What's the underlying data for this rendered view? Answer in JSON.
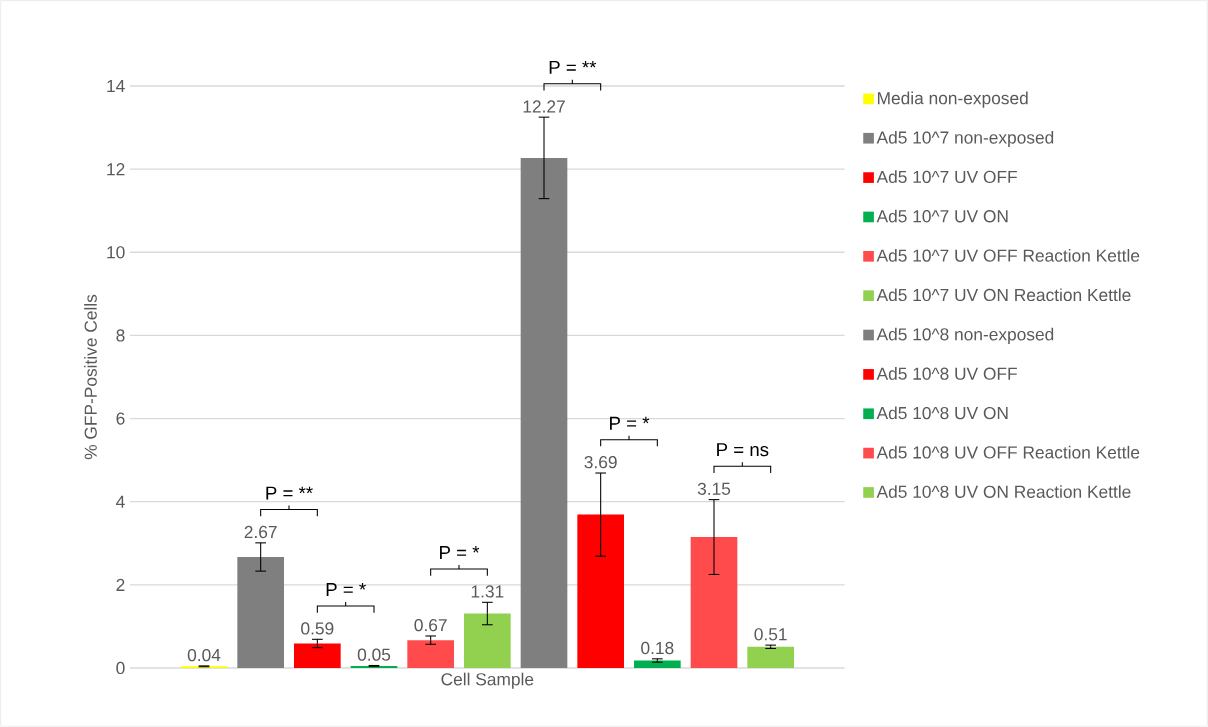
{
  "chart_data": {
    "type": "bar",
    "ylabel": "% GFP-Positive Cells",
    "categories": [
      "Cell Sample"
    ],
    "series": [
      {
        "name": "Media non-exposed",
        "color": "#ffff00",
        "values": [
          0.04
        ],
        "errors": [
          0.01
        ]
      },
      {
        "name": "Ad5 10^7 non-exposed",
        "color": "#7f7f7f",
        "values": [
          2.67
        ],
        "errors": [
          0.34
        ]
      },
      {
        "name": "Ad5 10^7 UV OFF",
        "color": "#ff0000",
        "values": [
          0.59
        ],
        "errors": [
          0.1
        ]
      },
      {
        "name": "Ad5 10^7 UV ON",
        "color": "#00b050",
        "values": [
          0.05
        ],
        "errors": [
          0.01
        ]
      },
      {
        "name": "Ad5 10^7 UV OFF Reaction Kettle",
        "color": "#ff4b4b",
        "values": [
          0.67
        ],
        "errors": [
          0.1
        ]
      },
      {
        "name": "Ad5 10^7 UV ON Reaction Kettle",
        "color": "#92d050",
        "values": [
          1.31
        ],
        "errors": [
          0.27
        ]
      },
      {
        "name": "Ad5 10^8 non-exposed",
        "color": "#7f7f7f",
        "values": [
          12.27
        ],
        "errors": [
          0.98
        ]
      },
      {
        "name": "Ad5 10^8 UV OFF",
        "color": "#ff0000",
        "values": [
          3.69
        ],
        "errors": [
          1.0
        ]
      },
      {
        "name": "Ad5 10^8 UV ON",
        "color": "#00b050",
        "values": [
          0.18
        ],
        "errors": [
          0.04
        ]
      },
      {
        "name": "Ad5 10^8 UV OFF Reaction Kettle",
        "color": "#ff4b4b",
        "values": [
          3.15
        ],
        "errors": [
          0.9
        ]
      },
      {
        "name": "Ad5 10^8 UV ON Reaction Kettle",
        "color": "#92d050",
        "values": [
          0.51
        ],
        "errors": [
          0.04
        ]
      }
    ],
    "ylim": [
      0,
      14
    ],
    "yticks": [
      0,
      2,
      4,
      6,
      8,
      10,
      12,
      14
    ],
    "grid": "y",
    "legend": "right",
    "data_labels": true,
    "annotations": [
      "P = **",
      "P = *",
      "P = *",
      "P = **",
      "P = *",
      "P = ns"
    ]
  }
}
